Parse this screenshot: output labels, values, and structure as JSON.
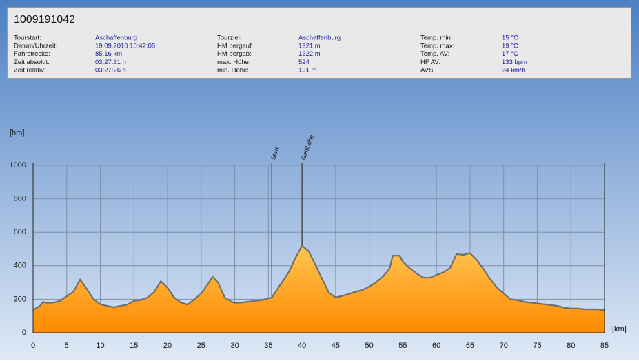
{
  "header": {
    "title": "1009191042",
    "fields": [
      [
        {
          "label": "Tourstart:",
          "value": "Aschaffenburg"
        },
        {
          "label": "Datum/Uhrzeit:",
          "value": "19.09.2010 10:42:05"
        },
        {
          "label": "Fahrstrecke:",
          "value": "85.16 km"
        },
        {
          "label": "Zeit absolut:",
          "value": "03:27:31 h"
        },
        {
          "label": "Zeit relativ:",
          "value": "03:27:26 h"
        }
      ],
      [
        {
          "label": "Tourziel:",
          "value": "Aschaffenburg"
        },
        {
          "label": "HM bergauf:",
          "value": "1321 m"
        },
        {
          "label": "HM bergab:",
          "value": "1322 m"
        },
        {
          "label": "max. Höhe:",
          "value": "524 m"
        },
        {
          "label": "min. Höhe:",
          "value": "131 m"
        }
      ],
      [
        {
          "label": "Temp. min:",
          "value": "15 °C"
        },
        {
          "label": "Temp. max:",
          "value": "19 °C"
        },
        {
          "label": "Temp. AV:",
          "value": "17 °C"
        },
        {
          "label": "HF AV:",
          "value": "133 bpm"
        },
        {
          "label": "AVS:",
          "value": "24 km/h"
        }
      ]
    ]
  },
  "chart_data": {
    "type": "area",
    "y_label": "[hm]",
    "x_label": "[km]",
    "x": [
      0,
      1,
      1.5,
      2,
      3,
      4,
      5,
      6,
      7,
      8,
      9,
      10,
      11,
      12,
      13,
      14,
      15,
      16,
      17,
      18,
      19,
      20,
      21,
      22,
      23,
      24,
      25,
      26,
      26.7,
      27.5,
      28.5,
      29.5,
      30,
      31,
      32,
      33,
      34,
      35,
      35.5,
      37,
      38,
      39,
      40,
      41,
      42,
      43,
      44,
      45,
      46,
      47,
      48,
      49,
      50,
      51,
      52,
      53,
      53.5,
      54.5,
      55,
      56,
      57,
      58,
      59,
      60,
      61,
      62,
      63,
      64,
      65,
      66,
      67,
      68,
      69,
      70,
      71,
      72,
      73,
      74,
      75,
      76,
      77,
      78,
      79,
      80,
      81,
      82,
      83,
      84,
      85
    ],
    "values": [
      136,
      160,
      184,
      178,
      180,
      190,
      218,
      245,
      318,
      260,
      200,
      170,
      160,
      152,
      160,
      168,
      190,
      195,
      210,
      243,
      308,
      268,
      210,
      180,
      168,
      200,
      235,
      290,
      335,
      300,
      210,
      185,
      178,
      180,
      185,
      190,
      195,
      205,
      210,
      300,
      360,
      445,
      520,
      485,
      405,
      320,
      240,
      210,
      220,
      232,
      245,
      255,
      275,
      300,
      335,
      380,
      460,
      460,
      425,
      385,
      355,
      330,
      328,
      345,
      360,
      385,
      470,
      465,
      475,
      435,
      380,
      320,
      270,
      235,
      200,
      195,
      185,
      180,
      175,
      170,
      165,
      160,
      150,
      145,
      145,
      140,
      140,
      140,
      135
    ],
    "xlim": [
      0,
      85
    ],
    "xticks": [
      0,
      5,
      10,
      15,
      20,
      25,
      30,
      35,
      40,
      45,
      50,
      55,
      60,
      65,
      70,
      75,
      80,
      85
    ],
    "ylim": [
      0,
      1000
    ],
    "yticks": [
      0,
      200,
      400,
      600,
      800,
      1000
    ],
    "grid": true,
    "line_color": "#6e6e6e",
    "fill_top": "#ffc552",
    "fill_bottom": "#ff8a00",
    "markers": [
      {
        "x": 35.5,
        "label": "Start"
      },
      {
        "x": 40,
        "label": "Geishöhe"
      }
    ]
  }
}
